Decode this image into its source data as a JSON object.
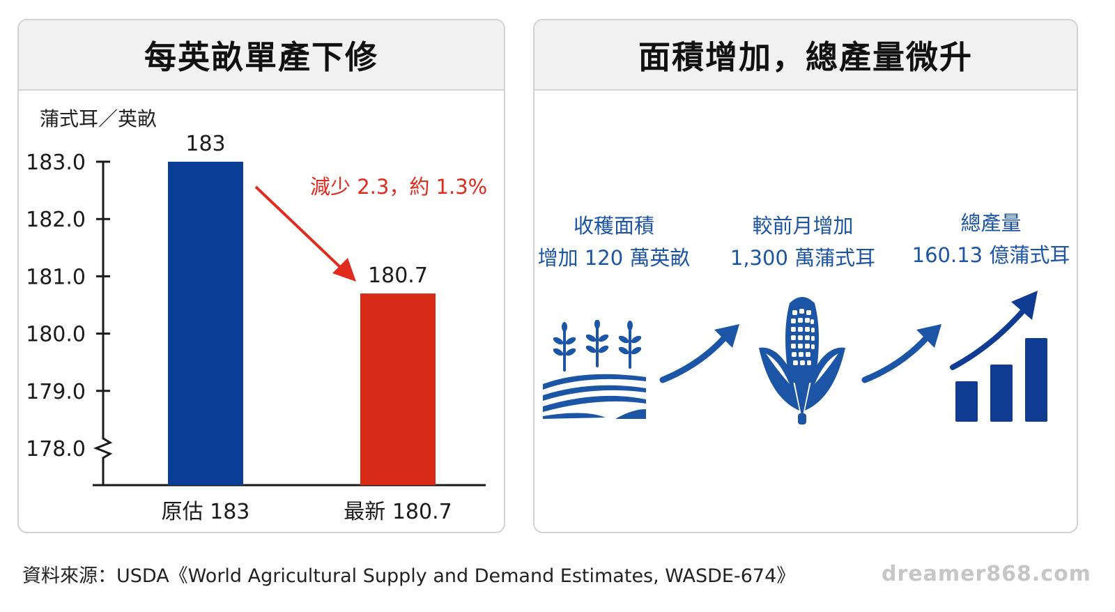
{
  "left_panel": {
    "title": "每英畝單產下修"
  },
  "right_panel": {
    "title": "面積增加，總產量微升"
  },
  "chart_data": {
    "type": "bar",
    "title": "每英畝單產下修",
    "ylabel": "蒲式耳／英畝",
    "ylim": [
      177.4,
      183.3
    ],
    "y_ticks": [
      183.0,
      182.0,
      181.0,
      180.0,
      179.0,
      178.0
    ],
    "y_tick_labels": [
      "183.0",
      "182.0",
      "181.0",
      "180.0",
      "179.0",
      "178.0"
    ],
    "axis_break": true,
    "categories": [
      "原估 183",
      "最新 180.7"
    ],
    "values": [
      183,
      180.7
    ],
    "value_labels": [
      "183",
      "180.7"
    ],
    "bar_colors": [
      "#0a3d96",
      "#d72b18"
    ],
    "annotation": "減少 2.3，約 1.3%",
    "annotation_color": "#e02b1e"
  },
  "flow": [
    {
      "line1": "收穫面積",
      "line2": "增加 120 萬英畝",
      "icon": "farm-field-icon"
    },
    {
      "line1": "較前月增加",
      "line2": "1,300 萬蒲式耳",
      "icon": "corn-icon"
    },
    {
      "line1": "總產量",
      "line2": "160.13 億蒲式耳",
      "icon": "growth-chart-icon"
    }
  ],
  "flow_arrow_icon": "arrow-up-right-icon",
  "flow_color": "#1c54a6",
  "source_note": "資料來源：USDA《World Agricultural Supply and Demand Estimates, WASDE-674》",
  "watermark": "dreamer868.com"
}
